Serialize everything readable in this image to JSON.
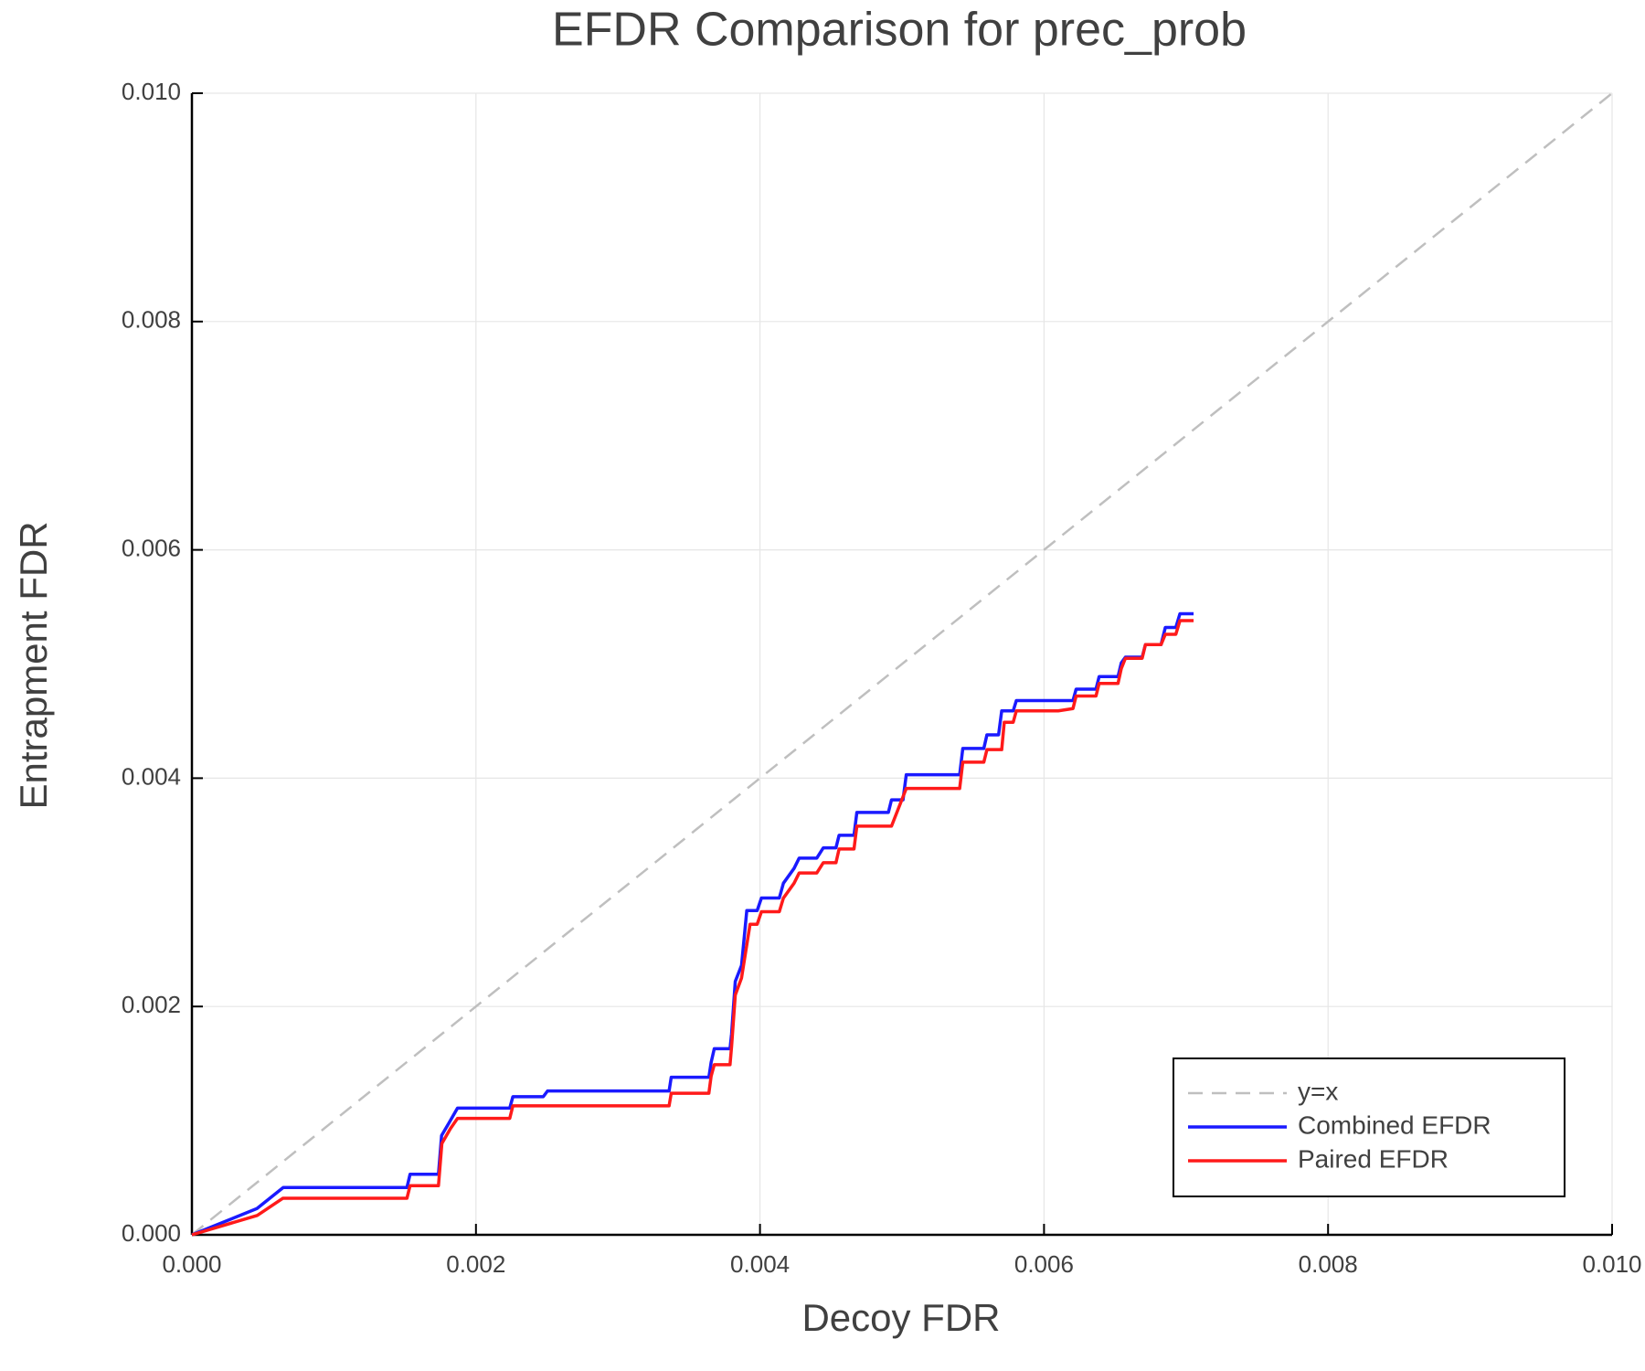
{
  "chart_data": {
    "type": "line",
    "title": "EFDR Comparison for prec_prob",
    "x_label": "Decoy FDR",
    "y_label": "Entrapment FDR",
    "xlim": [
      0,
      0.01
    ],
    "ylim": [
      0,
      0.01
    ],
    "xticks": [
      {
        "value": 0,
        "label": "0.000"
      },
      {
        "value": 0.002,
        "label": "0.002"
      },
      {
        "value": 0.004,
        "label": "0.004"
      },
      {
        "value": 0.006,
        "label": "0.006"
      },
      {
        "value": 0.008,
        "label": "0.008"
      },
      {
        "value": 0.01,
        "label": "0.010"
      }
    ],
    "yticks": [
      {
        "value": 0,
        "label": "0.000"
      },
      {
        "value": 0.002,
        "label": "0.002"
      },
      {
        "value": 0.004,
        "label": "0.004"
      },
      {
        "value": 0.006,
        "label": "0.006"
      },
      {
        "value": 0.008,
        "label": "0.008"
      },
      {
        "value": 0.01,
        "label": "0.010"
      }
    ],
    "grid": true,
    "legend": "bottom right",
    "series": [
      {
        "name": "y=x",
        "color": "#bfbfbf",
        "dashed": true,
        "x": [
          0,
          0.01
        ],
        "values": [
          0,
          0.01
        ]
      },
      {
        "name": "Combined EFDR",
        "color": "#1a1aff",
        "x": [
          0,
          0.000458,
          0.000643,
          0.001514,
          0.001536,
          0.001736,
          0.001758,
          0.00181,
          0.00187,
          0.002238,
          0.00226,
          0.002474,
          0.002504,
          0.00336,
          0.003375,
          0.00364,
          0.003656,
          0.003678,
          0.003789,
          0.0038,
          0.003826,
          0.00387,
          0.003907,
          0.00398,
          0.00401,
          0.004136,
          0.004165,
          0.00424,
          0.004276,
          0.0044,
          0.004446,
          0.004535,
          0.004557,
          0.004662,
          0.004682,
          0.004904,
          0.004926,
          0.005007,
          0.00503,
          0.005406,
          0.005428,
          0.005576,
          0.005598,
          0.00568,
          0.005702,
          0.005783,
          0.005805,
          0.006204,
          0.006226,
          0.006366,
          0.006388,
          0.006521,
          0.006544,
          0.006573,
          0.006691,
          0.006714,
          0.006824,
          0.006854,
          0.006928,
          0.006957,
          0.007053
        ],
        "values": [
          0,
          0.00023,
          0.000414,
          0.000414,
          0.00053,
          0.00053,
          0.00087,
          0.00098,
          0.00111,
          0.00111,
          0.00121,
          0.00121,
          0.00126,
          0.00126,
          0.00138,
          0.00138,
          0.00151,
          0.00163,
          0.00163,
          0.00176,
          0.00222,
          0.00236,
          0.00284,
          0.00284,
          0.00295,
          0.00295,
          0.00308,
          0.00321,
          0.0033,
          0.0033,
          0.00339,
          0.00339,
          0.0035,
          0.0035,
          0.0037,
          0.0037,
          0.00381,
          0.00381,
          0.00403,
          0.00403,
          0.00426,
          0.00426,
          0.00438,
          0.00438,
          0.00459,
          0.00459,
          0.00468,
          0.00468,
          0.00478,
          0.00478,
          0.00489,
          0.00489,
          0.00501,
          0.00506,
          0.00506,
          0.00517,
          0.00517,
          0.00532,
          0.00532,
          0.00544,
          0.00544
        ]
      },
      {
        "name": "Paired EFDR",
        "color": "#ff1a1a",
        "x": [
          0,
          0.00046,
          0.00064,
          0.001514,
          0.001536,
          0.001736,
          0.00176,
          0.00182,
          0.00187,
          0.002238,
          0.00226,
          0.00336,
          0.003375,
          0.00364,
          0.003656,
          0.003678,
          0.003789,
          0.0038,
          0.003826,
          0.00387,
          0.00393,
          0.00398,
          0.00401,
          0.004136,
          0.004165,
          0.00424,
          0.004276,
          0.0044,
          0.004446,
          0.004535,
          0.004557,
          0.004662,
          0.004682,
          0.004926,
          0.00503,
          0.005406,
          0.005428,
          0.005576,
          0.005598,
          0.005702,
          0.00572,
          0.005783,
          0.005805,
          0.0061,
          0.006204,
          0.006226,
          0.006366,
          0.006388,
          0.006521,
          0.006544,
          0.006573,
          0.006691,
          0.006714,
          0.006824,
          0.006854,
          0.006928,
          0.006957,
          0.007053
        ],
        "values": [
          0,
          0.00017,
          0.00032,
          0.00032,
          0.00043,
          0.00043,
          0.0008,
          0.00093,
          0.00102,
          0.00102,
          0.00113,
          0.00113,
          0.00124,
          0.00124,
          0.00139,
          0.00149,
          0.00149,
          0.00165,
          0.0021,
          0.00225,
          0.00272,
          0.00272,
          0.00283,
          0.00283,
          0.00295,
          0.00308,
          0.00317,
          0.00317,
          0.00326,
          0.00326,
          0.00338,
          0.00338,
          0.00358,
          0.00358,
          0.00391,
          0.00391,
          0.00414,
          0.00414,
          0.00425,
          0.00425,
          0.00449,
          0.00449,
          0.00459,
          0.00459,
          0.00461,
          0.00472,
          0.00472,
          0.00483,
          0.00483,
          0.00496,
          0.00505,
          0.00505,
          0.00517,
          0.00517,
          0.00526,
          0.00526,
          0.00538,
          0.00538
        ]
      }
    ]
  }
}
